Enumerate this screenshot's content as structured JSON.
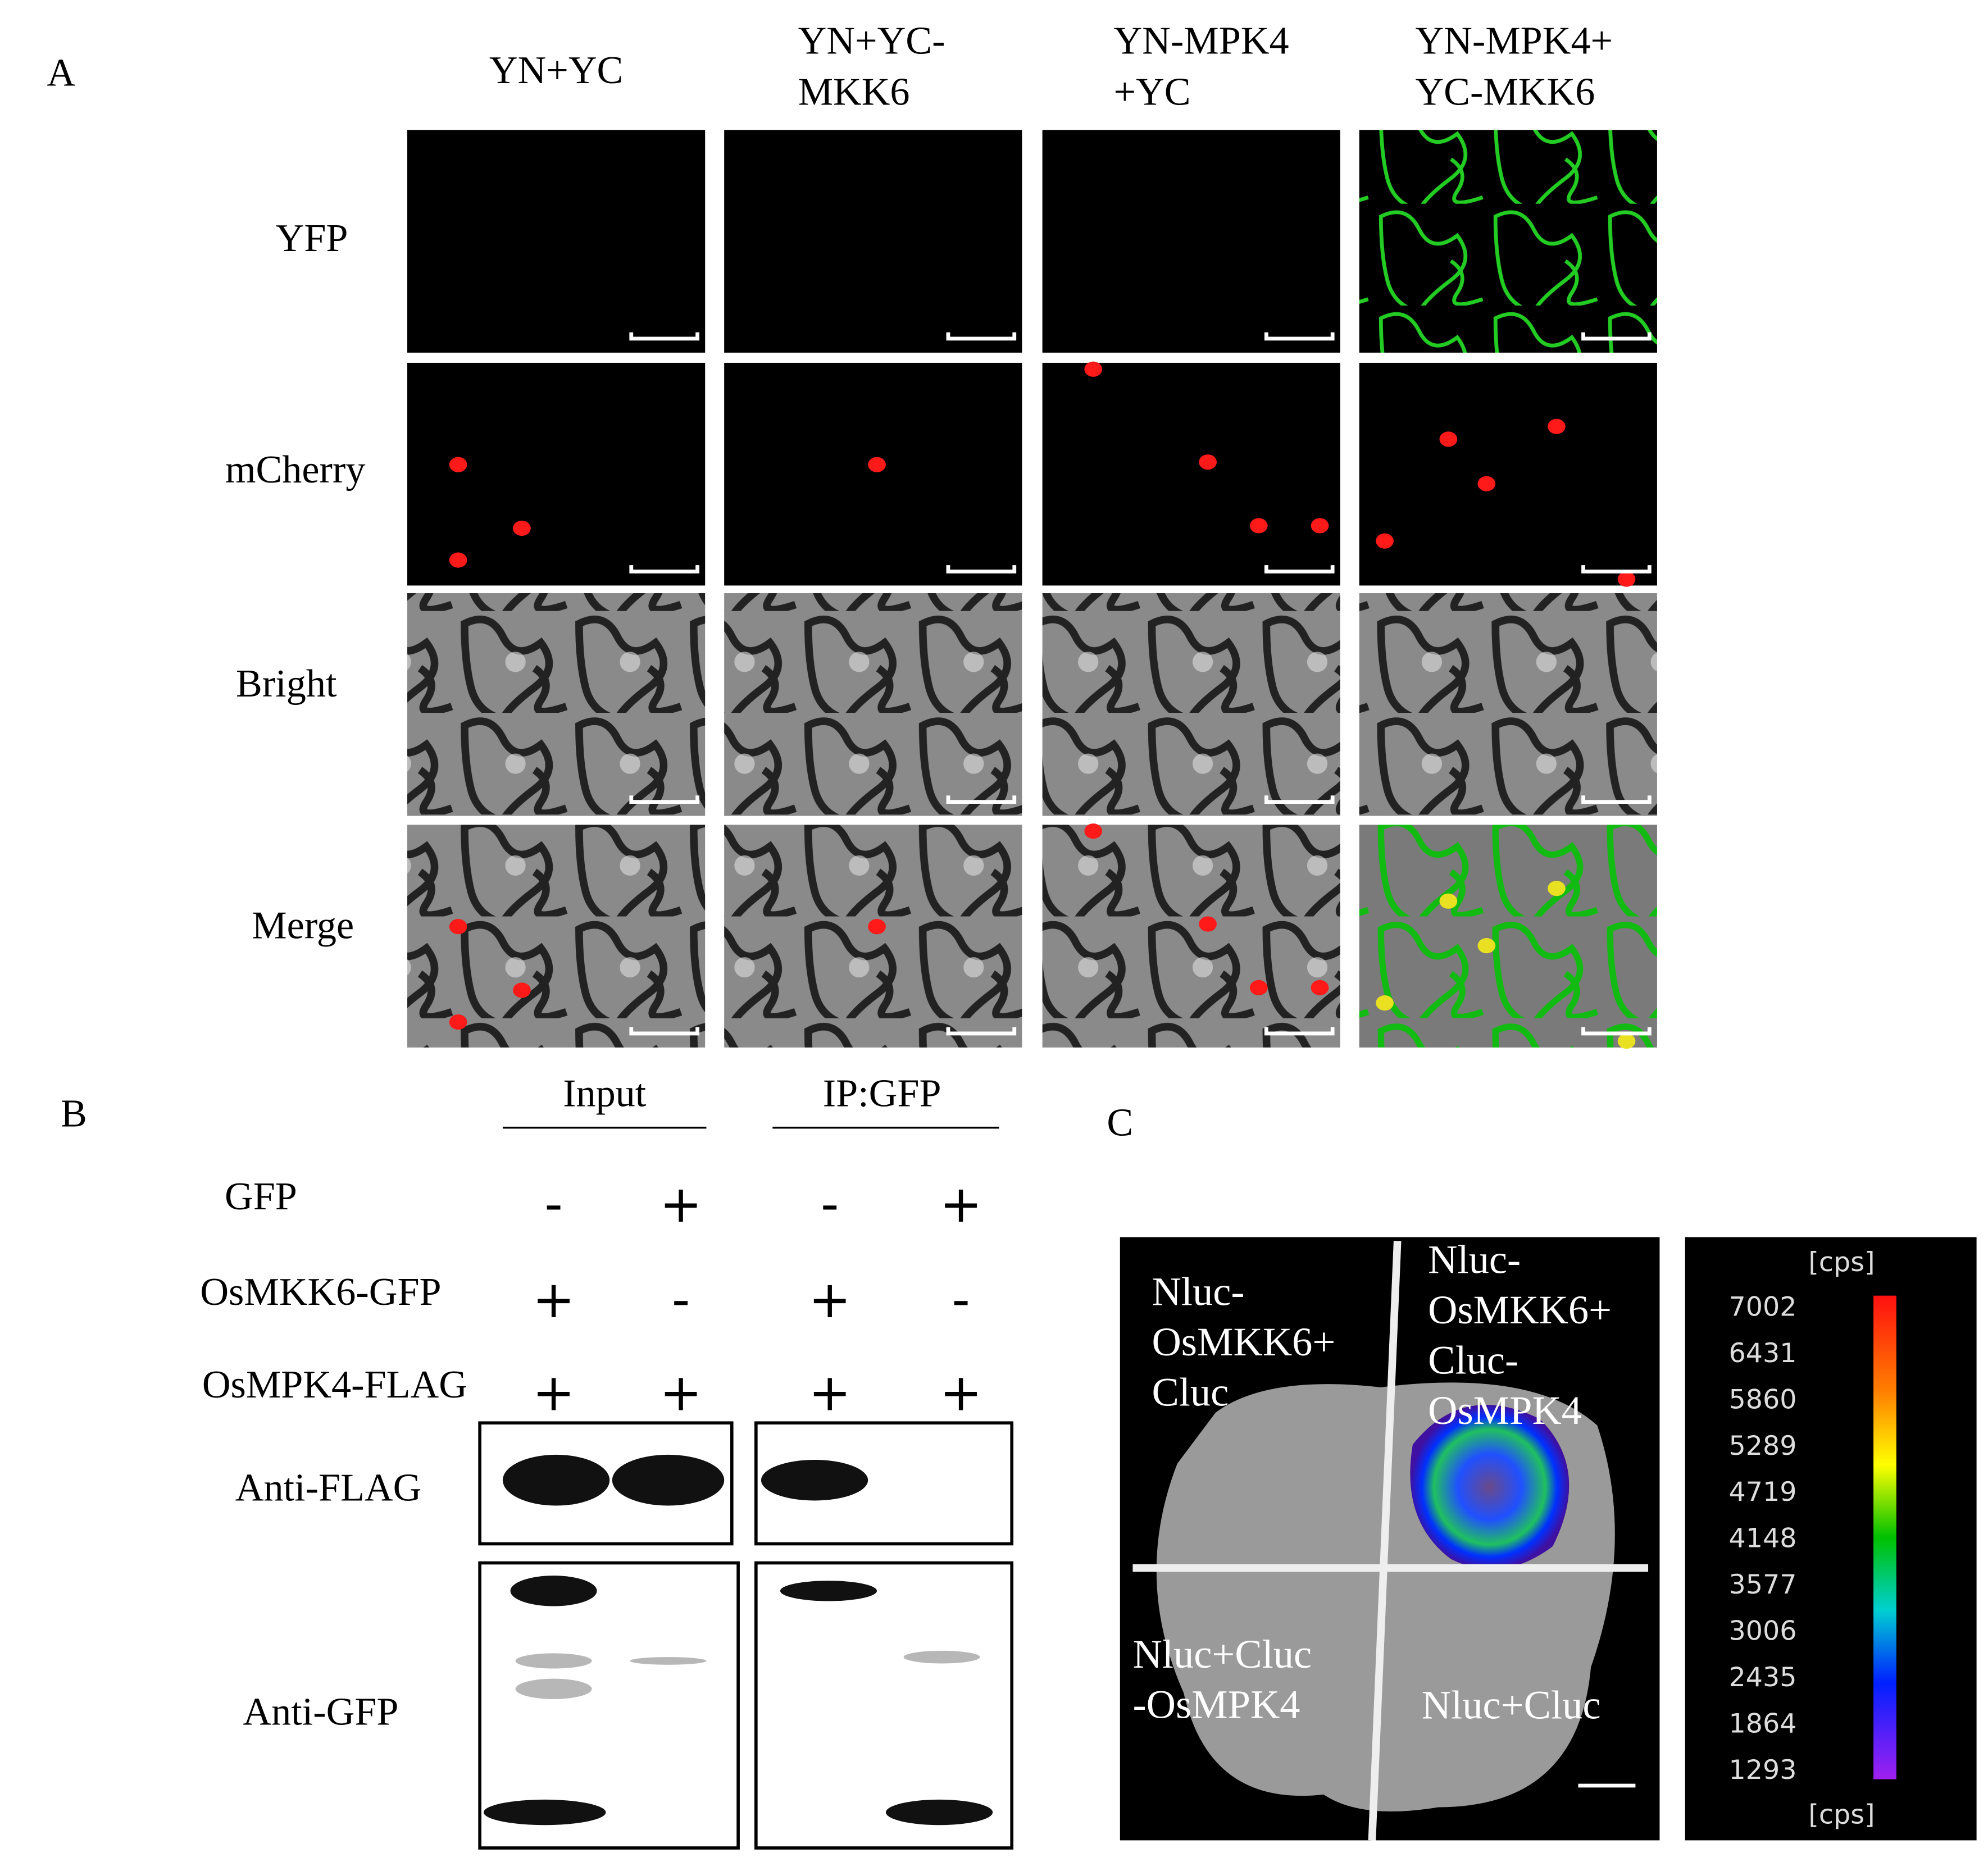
{
  "panel_a": {
    "label": "A",
    "columns": [
      [
        "YN+YC"
      ],
      [
        "YN+YC-",
        "MKK6"
      ],
      [
        "YN-MPK4",
        "+YC"
      ],
      [
        "YN-MPK4+",
        "YC-MKK6"
      ]
    ],
    "rows": [
      "YFP",
      "mCherry",
      "Bright",
      "Merge"
    ]
  },
  "panel_b": {
    "label": "B",
    "groups": [
      "Input",
      "IP:GFP"
    ],
    "rows": [
      {
        "label": "GFP",
        "signs": [
          "-",
          "+",
          "-",
          "+"
        ]
      },
      {
        "label": "OsMKK6-GFP",
        "signs": [
          "+",
          "-",
          "+",
          "-"
        ]
      },
      {
        "label": "OsMPK4-FLAG",
        "signs": [
          "+",
          "+",
          "+",
          "+"
        ]
      }
    ],
    "blots": [
      "Anti-FLAG",
      "Anti-GFP"
    ]
  },
  "panel_c": {
    "label": "C",
    "quadrants": [
      [
        "Nluc-",
        "OsMKK6+",
        "Cluc"
      ],
      [
        "Nluc-",
        "OsMKK6+",
        "Cluc-",
        "OsMPK4"
      ],
      [
        "Nluc+Cluc",
        "-OsMPK4"
      ],
      [
        "Nluc+Cluc"
      ]
    ],
    "colorbar": {
      "unit": "[cps]",
      "ticks": [
        7002,
        6431,
        5860,
        5289,
        4719,
        4148,
        3577,
        3006,
        2435,
        1864,
        1293
      ]
    }
  }
}
